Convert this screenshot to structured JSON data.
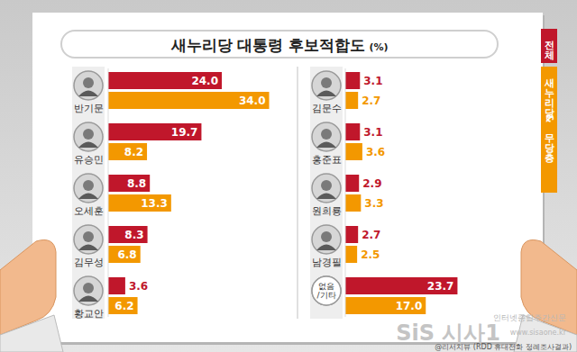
{
  "chart_data": {
    "type": "bar",
    "title": "새누리당 대통령 후보적합도 (%)",
    "orientation": "horizontal",
    "data_labels": true,
    "tick_labels": false,
    "grid": false,
    "xlim": [
      0,
      40
    ],
    "categories": [
      "반기문",
      "유승민",
      "오세훈",
      "김무성",
      "황교안",
      "김문수",
      "홍준표",
      "원희룡",
      "남경필",
      "없음/기타"
    ],
    "series": [
      {
        "name": "전체",
        "color": "#c0172b",
        "values": [
          24.0,
          19.7,
          8.8,
          8.3,
          3.6,
          3.1,
          3.1,
          2.9,
          2.7,
          23.7
        ],
        "value_labels": [
          "24.0",
          "19.7",
          "8.8",
          "8.3",
          "3.6",
          "3.1",
          "3.1",
          "2.9",
          "2.7",
          "23.7"
        ]
      },
      {
        "name": "새누리당 & 무당층",
        "color": "#f39800",
        "values": [
          34.0,
          8.2,
          13.3,
          6.8,
          6.2,
          2.7,
          3.6,
          3.3,
          2.5,
          17.0
        ],
        "value_labels": [
          "34.0",
          "8.2",
          "13.3",
          "6.8",
          "6.2",
          "2.7",
          "3.6",
          "3.3",
          "2.5",
          "17.0"
        ]
      }
    ],
    "annotations": [
      "인터넷종합주간신문",
      "SiS 시사1",
      "www.sisaone.kr",
      "@리서치뷰 (RDD 휴대전화 정례조사결과)"
    ]
  }
}
